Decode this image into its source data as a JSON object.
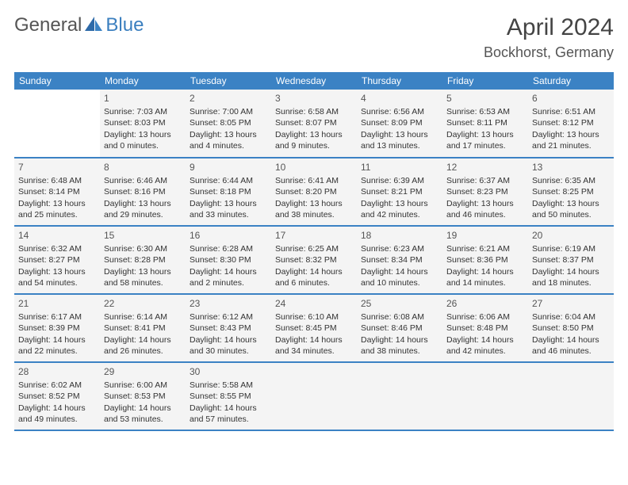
{
  "logo": {
    "general": "General",
    "blue": "Blue"
  },
  "title": "April 2024",
  "location": "Bockhorst, Germany",
  "colors": {
    "header_bg": "#3b82c4",
    "header_text": "#ffffff",
    "cell_bg": "#f4f4f4",
    "row_border": "#3b82c4",
    "page_bg": "#ffffff",
    "text": "#333333",
    "logo_blue": "#3b7fbf",
    "logo_gray": "#555555"
  },
  "typography": {
    "title_fontsize": 30,
    "location_fontsize": 18,
    "th_fontsize": 12,
    "cell_fontsize": 10.5,
    "daynum_fontsize": 12
  },
  "daynames": [
    "Sunday",
    "Monday",
    "Tuesday",
    "Wednesday",
    "Thursday",
    "Friday",
    "Saturday"
  ],
  "weeks": [
    [
      null,
      {
        "n": "1",
        "sr": "Sunrise: 7:03 AM",
        "ss": "Sunset: 8:03 PM",
        "dl": "Daylight: 13 hours and 0 minutes."
      },
      {
        "n": "2",
        "sr": "Sunrise: 7:00 AM",
        "ss": "Sunset: 8:05 PM",
        "dl": "Daylight: 13 hours and 4 minutes."
      },
      {
        "n": "3",
        "sr": "Sunrise: 6:58 AM",
        "ss": "Sunset: 8:07 PM",
        "dl": "Daylight: 13 hours and 9 minutes."
      },
      {
        "n": "4",
        "sr": "Sunrise: 6:56 AM",
        "ss": "Sunset: 8:09 PM",
        "dl": "Daylight: 13 hours and 13 minutes."
      },
      {
        "n": "5",
        "sr": "Sunrise: 6:53 AM",
        "ss": "Sunset: 8:11 PM",
        "dl": "Daylight: 13 hours and 17 minutes."
      },
      {
        "n": "6",
        "sr": "Sunrise: 6:51 AM",
        "ss": "Sunset: 8:12 PM",
        "dl": "Daylight: 13 hours and 21 minutes."
      }
    ],
    [
      {
        "n": "7",
        "sr": "Sunrise: 6:48 AM",
        "ss": "Sunset: 8:14 PM",
        "dl": "Daylight: 13 hours and 25 minutes."
      },
      {
        "n": "8",
        "sr": "Sunrise: 6:46 AM",
        "ss": "Sunset: 8:16 PM",
        "dl": "Daylight: 13 hours and 29 minutes."
      },
      {
        "n": "9",
        "sr": "Sunrise: 6:44 AM",
        "ss": "Sunset: 8:18 PM",
        "dl": "Daylight: 13 hours and 33 minutes."
      },
      {
        "n": "10",
        "sr": "Sunrise: 6:41 AM",
        "ss": "Sunset: 8:20 PM",
        "dl": "Daylight: 13 hours and 38 minutes."
      },
      {
        "n": "11",
        "sr": "Sunrise: 6:39 AM",
        "ss": "Sunset: 8:21 PM",
        "dl": "Daylight: 13 hours and 42 minutes."
      },
      {
        "n": "12",
        "sr": "Sunrise: 6:37 AM",
        "ss": "Sunset: 8:23 PM",
        "dl": "Daylight: 13 hours and 46 minutes."
      },
      {
        "n": "13",
        "sr": "Sunrise: 6:35 AM",
        "ss": "Sunset: 8:25 PM",
        "dl": "Daylight: 13 hours and 50 minutes."
      }
    ],
    [
      {
        "n": "14",
        "sr": "Sunrise: 6:32 AM",
        "ss": "Sunset: 8:27 PM",
        "dl": "Daylight: 13 hours and 54 minutes."
      },
      {
        "n": "15",
        "sr": "Sunrise: 6:30 AM",
        "ss": "Sunset: 8:28 PM",
        "dl": "Daylight: 13 hours and 58 minutes."
      },
      {
        "n": "16",
        "sr": "Sunrise: 6:28 AM",
        "ss": "Sunset: 8:30 PM",
        "dl": "Daylight: 14 hours and 2 minutes."
      },
      {
        "n": "17",
        "sr": "Sunrise: 6:25 AM",
        "ss": "Sunset: 8:32 PM",
        "dl": "Daylight: 14 hours and 6 minutes."
      },
      {
        "n": "18",
        "sr": "Sunrise: 6:23 AM",
        "ss": "Sunset: 8:34 PM",
        "dl": "Daylight: 14 hours and 10 minutes."
      },
      {
        "n": "19",
        "sr": "Sunrise: 6:21 AM",
        "ss": "Sunset: 8:36 PM",
        "dl": "Daylight: 14 hours and 14 minutes."
      },
      {
        "n": "20",
        "sr": "Sunrise: 6:19 AM",
        "ss": "Sunset: 8:37 PM",
        "dl": "Daylight: 14 hours and 18 minutes."
      }
    ],
    [
      {
        "n": "21",
        "sr": "Sunrise: 6:17 AM",
        "ss": "Sunset: 8:39 PM",
        "dl": "Daylight: 14 hours and 22 minutes."
      },
      {
        "n": "22",
        "sr": "Sunrise: 6:14 AM",
        "ss": "Sunset: 8:41 PM",
        "dl": "Daylight: 14 hours and 26 minutes."
      },
      {
        "n": "23",
        "sr": "Sunrise: 6:12 AM",
        "ss": "Sunset: 8:43 PM",
        "dl": "Daylight: 14 hours and 30 minutes."
      },
      {
        "n": "24",
        "sr": "Sunrise: 6:10 AM",
        "ss": "Sunset: 8:45 PM",
        "dl": "Daylight: 14 hours and 34 minutes."
      },
      {
        "n": "25",
        "sr": "Sunrise: 6:08 AM",
        "ss": "Sunset: 8:46 PM",
        "dl": "Daylight: 14 hours and 38 minutes."
      },
      {
        "n": "26",
        "sr": "Sunrise: 6:06 AM",
        "ss": "Sunset: 8:48 PM",
        "dl": "Daylight: 14 hours and 42 minutes."
      },
      {
        "n": "27",
        "sr": "Sunrise: 6:04 AM",
        "ss": "Sunset: 8:50 PM",
        "dl": "Daylight: 14 hours and 46 minutes."
      }
    ],
    [
      {
        "n": "28",
        "sr": "Sunrise: 6:02 AM",
        "ss": "Sunset: 8:52 PM",
        "dl": "Daylight: 14 hours and 49 minutes."
      },
      {
        "n": "29",
        "sr": "Sunrise: 6:00 AM",
        "ss": "Sunset: 8:53 PM",
        "dl": "Daylight: 14 hours and 53 minutes."
      },
      {
        "n": "30",
        "sr": "Sunrise: 5:58 AM",
        "ss": "Sunset: 8:55 PM",
        "dl": "Daylight: 14 hours and 57 minutes."
      },
      "tail",
      "tail",
      "tail",
      "tail"
    ]
  ]
}
